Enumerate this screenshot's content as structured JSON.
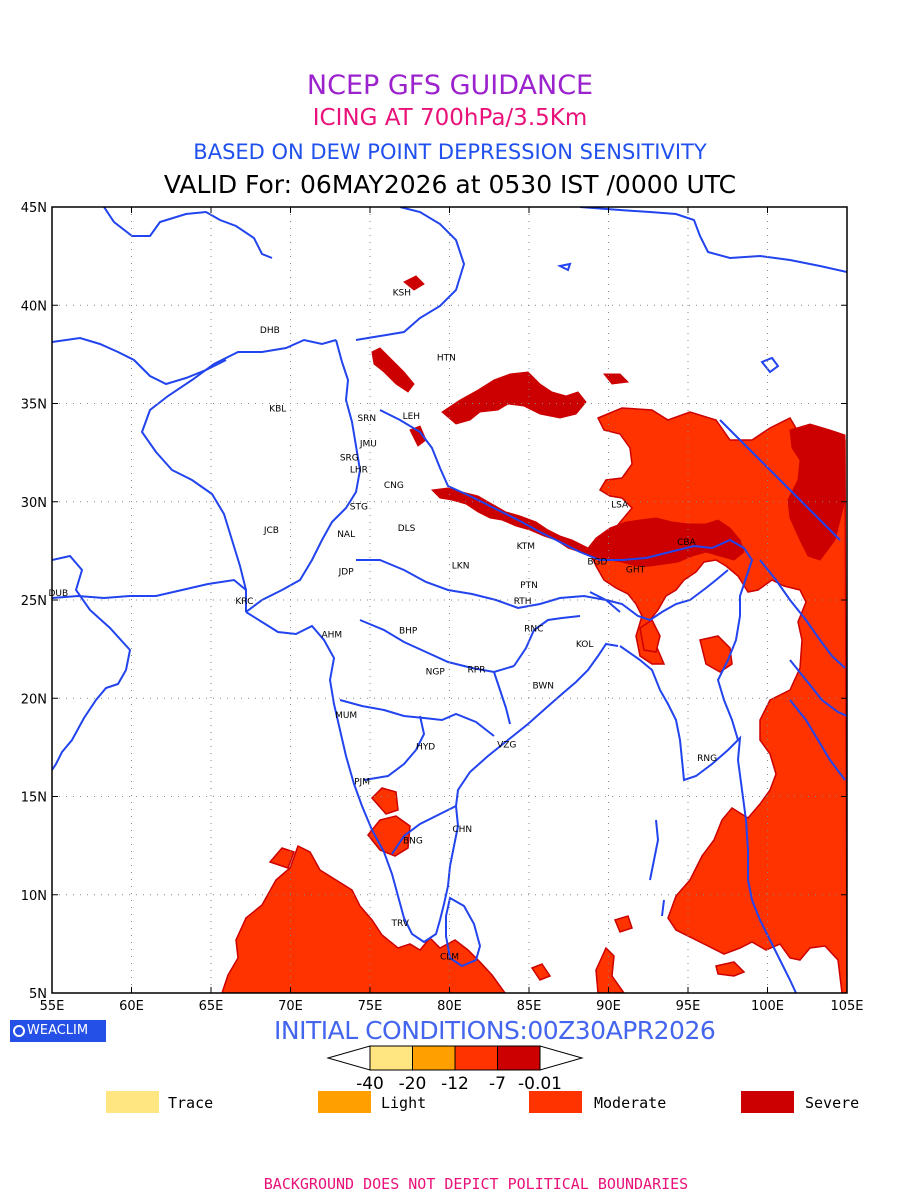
{
  "titles": {
    "line1": "NCEP GFS GUIDANCE",
    "line2": "ICING AT 700hPa/3.5Km",
    "line3": "BASED ON DEW POINT DEPRESSION SENSITIVITY",
    "line4": "VALID For: 06MAY2026 at 0530 IST /0000 UTC"
  },
  "axes": {
    "lon_labels": [
      "55E",
      "60E",
      "65E",
      "70E",
      "75E",
      "80E",
      "85E",
      "90E",
      "95E",
      "100E",
      "105E"
    ],
    "lat_labels": [
      "45N",
      "40N",
      "35N",
      "30N",
      "25N",
      "20N",
      "15N",
      "10N",
      "5N"
    ],
    "lon_range": [
      55,
      105
    ],
    "lat_range": [
      5,
      45
    ]
  },
  "stations": [
    {
      "name": "KSH",
      "lon": 77.0,
      "lat": 40.5
    },
    {
      "name": "DHB",
      "lon": 68.7,
      "lat": 38.6
    },
    {
      "name": "HTN",
      "lon": 79.8,
      "lat": 37.2
    },
    {
      "name": "KBL",
      "lon": 69.2,
      "lat": 34.6
    },
    {
      "name": "SRN",
      "lon": 74.8,
      "lat": 34.1
    },
    {
      "name": "LEH",
      "lon": 77.6,
      "lat": 34.2
    },
    {
      "name": "JMU",
      "lon": 74.9,
      "lat": 32.8
    },
    {
      "name": "SRG",
      "lon": 73.7,
      "lat": 32.1
    },
    {
      "name": "LHR",
      "lon": 74.3,
      "lat": 31.5
    },
    {
      "name": "CNG",
      "lon": 76.5,
      "lat": 30.7
    },
    {
      "name": "STG",
      "lon": 74.3,
      "lat": 29.6
    },
    {
      "name": "LSA",
      "lon": 90.7,
      "lat": 29.7
    },
    {
      "name": "JCB",
      "lon": 68.8,
      "lat": 28.4
    },
    {
      "name": "NAL",
      "lon": 73.5,
      "lat": 28.2
    },
    {
      "name": "DLS",
      "lon": 77.3,
      "lat": 28.5
    },
    {
      "name": "KTM",
      "lon": 84.8,
      "lat": 27.6
    },
    {
      "name": "CBA",
      "lon": 94.9,
      "lat": 27.8
    },
    {
      "name": "JDP",
      "lon": 73.5,
      "lat": 26.3
    },
    {
      "name": "LKN",
      "lon": 80.7,
      "lat": 26.6
    },
    {
      "name": "BGD",
      "lon": 89.3,
      "lat": 26.8
    },
    {
      "name": "GHT",
      "lon": 91.7,
      "lat": 26.4
    },
    {
      "name": "PTN",
      "lon": 85.0,
      "lat": 25.6
    },
    {
      "name": "DUB",
      "lon": 55.4,
      "lat": 25.2
    },
    {
      "name": "KRC",
      "lon": 67.1,
      "lat": 24.8
    },
    {
      "name": "RTH",
      "lon": 84.6,
      "lat": 24.8
    },
    {
      "name": "AHM",
      "lon": 72.6,
      "lat": 23.1
    },
    {
      "name": "BHP",
      "lon": 77.4,
      "lat": 23.3
    },
    {
      "name": "RNC",
      "lon": 85.3,
      "lat": 23.4
    },
    {
      "name": "KOL",
      "lon": 88.5,
      "lat": 22.6
    },
    {
      "name": "NGP",
      "lon": 79.1,
      "lat": 21.2
    },
    {
      "name": "RPR",
      "lon": 81.7,
      "lat": 21.3
    },
    {
      "name": "BWN",
      "lon": 85.9,
      "lat": 20.5
    },
    {
      "name": "MUM",
      "lon": 73.5,
      "lat": 19.0
    },
    {
      "name": "HYD",
      "lon": 78.5,
      "lat": 17.4
    },
    {
      "name": "VZG",
      "lon": 83.6,
      "lat": 17.5
    },
    {
      "name": "RNG",
      "lon": 96.2,
      "lat": 16.8
    },
    {
      "name": "PJM",
      "lon": 74.5,
      "lat": 15.6
    },
    {
      "name": "CHN",
      "lon": 80.8,
      "lat": 13.2
    },
    {
      "name": "BNG",
      "lon": 77.7,
      "lat": 12.6
    },
    {
      "name": "TRV",
      "lon": 76.9,
      "lat": 8.4
    },
    {
      "name": "CLM",
      "lon": 80.0,
      "lat": 6.7
    }
  ],
  "branding": {
    "logo_text": "WEACLIM",
    "logo_icon": "weaclim-globe-icon"
  },
  "initial_conditions": "INITIAL CONDITIONS:00Z30APR2026",
  "colorbar": {
    "tick_labels": [
      "-40",
      "-20",
      "-12",
      "-7",
      "-0.01"
    ],
    "colors": [
      "#ffe680",
      "#ffa000",
      "#ff3300",
      "#cc0000"
    ]
  },
  "legend": [
    {
      "label": "Trace",
      "color": "#ffe680"
    },
    {
      "label": "Light",
      "color": "#ffa000"
    },
    {
      "label": "Moderate",
      "color": "#ff3300"
    },
    {
      "label": "Severe",
      "color": "#cc0000"
    }
  ],
  "colors": {
    "boundary": "#2244ee",
    "moderate": "#ff3300",
    "severe": "#cc0000",
    "outline": "#cc0000"
  },
  "footer": "BACKGROUND DOES NOT DEPICT POLITICAL BOUNDARIES"
}
